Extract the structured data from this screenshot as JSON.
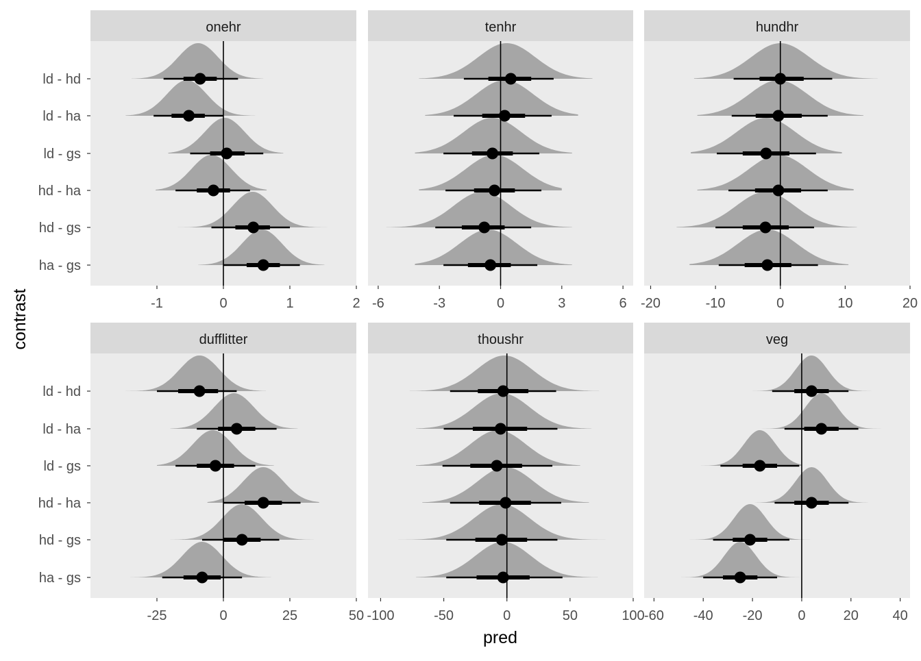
{
  "chart_data": {
    "type": "halfeye",
    "xlabel": "pred",
    "ylabel": "contrast",
    "categories": [
      "ld - hd",
      "ld - ha",
      "ld - gs",
      "hd - ha",
      "hd - gs",
      "ha - gs"
    ],
    "facets": [
      {
        "name": "onehr",
        "xlim": [
          -2.0,
          2.0
        ],
        "ticks": [
          -1,
          0,
          1,
          2
        ],
        "tick_labels": [
          "-1",
          "0",
          "1",
          "2"
        ],
        "points": [
          {
            "contrast": "ld - hd",
            "median": -0.35,
            "ci66": [
              -0.6,
              -0.1
            ],
            "ci95": [
              -0.9,
              0.22
            ],
            "range": [
              -1.38,
              0.6
            ],
            "mode": -0.38,
            "sd": 0.3
          },
          {
            "contrast": "ld - ha",
            "median": -0.52,
            "ci66": [
              -0.78,
              -0.28
            ],
            "ci95": [
              -1.05,
              0.0
            ],
            "range": [
              -1.47,
              0.48
            ],
            "mode": -0.55,
            "sd": 0.3
          },
          {
            "contrast": "ld - gs",
            "median": 0.05,
            "ci66": [
              -0.2,
              0.32
            ],
            "ci95": [
              -0.5,
              0.6
            ],
            "range": [
              -0.83,
              0.9
            ],
            "mode": 0.02,
            "sd": 0.3
          },
          {
            "contrast": "hd - ha",
            "median": -0.15,
            "ci66": [
              -0.4,
              0.1
            ],
            "ci95": [
              -0.72,
              0.4
            ],
            "range": [
              -1.02,
              0.65
            ],
            "mode": -0.18,
            "sd": 0.3
          },
          {
            "contrast": "hd - gs",
            "median": 0.45,
            "ci66": [
              0.18,
              0.7
            ],
            "ci95": [
              -0.18,
              1.0
            ],
            "range": [
              -0.7,
              1.6
            ],
            "mode": 0.44,
            "sd": 0.3
          },
          {
            "contrast": "ha - gs",
            "median": 0.6,
            "ci66": [
              0.35,
              0.85
            ],
            "ci95": [
              0.0,
              1.15
            ],
            "range": [
              -0.38,
              1.52
            ],
            "mode": 0.58,
            "sd": 0.3
          }
        ]
      },
      {
        "name": "tenhr",
        "xlim": [
          -6.5,
          6.5
        ],
        "ticks": [
          -6,
          -3,
          0,
          3,
          6
        ],
        "tick_labels": [
          "-6",
          "-3",
          "0",
          "3",
          "6"
        ],
        "points": [
          {
            "contrast": "ld - hd",
            "median": 0.5,
            "ci66": [
              -0.6,
              1.5
            ],
            "ci95": [
              -1.8,
              2.6
            ],
            "range": [
              -4.0,
              4.5
            ],
            "mode": 0.3,
            "sd": 1.4
          },
          {
            "contrast": "ld - ha",
            "median": 0.2,
            "ci66": [
              -0.9,
              1.2
            ],
            "ci95": [
              -2.3,
              2.5
            ],
            "range": [
              -3.7,
              3.8
            ],
            "mode": 0.2,
            "sd": 1.4
          },
          {
            "contrast": "ld - gs",
            "median": -0.4,
            "ci66": [
              -1.4,
              0.6
            ],
            "ci95": [
              -2.8,
              1.9
            ],
            "range": [
              -4.2,
              3.5
            ],
            "mode": -0.4,
            "sd": 1.4
          },
          {
            "contrast": "hd - ha",
            "median": -0.3,
            "ci66": [
              -1.3,
              0.7
            ],
            "ci95": [
              -2.7,
              2.0
            ],
            "range": [
              -4.0,
              3.0
            ],
            "mode": -0.3,
            "sd": 1.4
          },
          {
            "contrast": "hd - gs",
            "median": -0.8,
            "ci66": [
              -1.9,
              0.2
            ],
            "ci95": [
              -3.2,
              1.5
            ],
            "range": [
              -5.6,
              3.5
            ],
            "mode": -0.9,
            "sd": 1.4
          },
          {
            "contrast": "ha - gs",
            "median": -0.5,
            "ci66": [
              -1.6,
              0.5
            ],
            "ci95": [
              -2.8,
              1.8
            ],
            "range": [
              -4.2,
              3.5
            ],
            "mode": -0.6,
            "sd": 1.4
          }
        ]
      },
      {
        "name": "hundhr",
        "xlim": [
          -21.0,
          20.0
        ],
        "ticks": [
          -20,
          -10,
          0,
          10,
          20
        ],
        "tick_labels": [
          "-20",
          "-10",
          "0",
          "10",
          "20"
        ],
        "points": [
          {
            "contrast": "ld - hd",
            "median": 0.0,
            "ci66": [
              -3.2,
              3.6
            ],
            "ci95": [
              -7.2,
              8.0
            ],
            "range": [
              -13.3,
              15.0
            ],
            "mode": 0.0,
            "sd": 4.5
          },
          {
            "contrast": "ld - ha",
            "median": -0.3,
            "ci66": [
              -3.8,
              3.3
            ],
            "ci95": [
              -7.5,
              7.3
            ],
            "range": [
              -12.8,
              12.8
            ],
            "mode": -0.3,
            "sd": 4.5
          },
          {
            "contrast": "ld - gs",
            "median": -2.2,
            "ci66": [
              -5.8,
              1.4
            ],
            "ci95": [
              -9.8,
              5.5
            ],
            "range": [
              -13.8,
              9.5
            ],
            "mode": -2.2,
            "sd": 4.5
          },
          {
            "contrast": "hd - ha",
            "median": -0.3,
            "ci66": [
              -3.9,
              3.2
            ],
            "ci95": [
              -8.0,
              7.3
            ],
            "range": [
              -12.8,
              11.3
            ],
            "mode": -0.3,
            "sd": 4.5
          },
          {
            "contrast": "hd - gs",
            "median": -2.3,
            "ci66": [
              -5.8,
              1.3
            ],
            "ci95": [
              -10.0,
              5.2
            ],
            "range": [
              -16.0,
              11.8
            ],
            "mode": -2.3,
            "sd": 4.5
          },
          {
            "contrast": "ha - gs",
            "median": -2.0,
            "ci66": [
              -5.5,
              1.7
            ],
            "ci95": [
              -9.5,
              5.8
            ],
            "range": [
              -14.0,
              10.5
            ],
            "mode": -2.0,
            "sd": 4.5
          }
        ]
      },
      {
        "name": "dufflitter",
        "xlim": [
          -50.0,
          50.0
        ],
        "ticks": [
          -25,
          0,
          25,
          50
        ],
        "tick_labels": [
          "-25",
          "0",
          "25",
          "50"
        ],
        "points": [
          {
            "contrast": "ld - hd",
            "median": -9.0,
            "ci66": [
              -17.0,
              -2.0
            ],
            "ci95": [
              -25.0,
              5.0
            ],
            "range": [
              -37.0,
              16.0
            ],
            "mode": -9.0,
            "sd": 7.5
          },
          {
            "contrast": "ld - ha",
            "median": 5.0,
            "ci66": [
              -2.0,
              12.0
            ],
            "ci95": [
              -10.0,
              20.0
            ],
            "range": [
              -20.0,
              28.0
            ],
            "mode": 4.0,
            "sd": 7.5
          },
          {
            "contrast": "ld - gs",
            "median": -3.0,
            "ci66": [
              -10.0,
              4.0
            ],
            "ci95": [
              -18.0,
              12.0
            ],
            "range": [
              -25.0,
              19.0
            ],
            "mode": -4.0,
            "sd": 7.5
          },
          {
            "contrast": "hd - ha",
            "median": 15.0,
            "ci66": [
              8.0,
              22.0
            ],
            "ci95": [
              0.0,
              29.0
            ],
            "range": [
              -6.0,
              36.0
            ],
            "mode": 15.0,
            "sd": 7.5
          },
          {
            "contrast": "hd - gs",
            "median": 7.0,
            "ci66": [
              0.0,
              14.0
            ],
            "ci95": [
              -8.0,
              21.0
            ],
            "range": [
              -20.0,
              34.0
            ],
            "mode": 7.0,
            "sd": 7.5
          },
          {
            "contrast": "ha - gs",
            "median": -8.0,
            "ci66": [
              -15.0,
              -1.0
            ],
            "ci95": [
              -23.0,
              7.0
            ],
            "range": [
              -35.0,
              18.0
            ],
            "mode": -8.0,
            "sd": 7.5
          }
        ]
      },
      {
        "name": "thoushr",
        "xlim": [
          -110.0,
          100.0
        ],
        "ticks": [
          -100,
          -50,
          0,
          50,
          100
        ],
        "tick_labels": [
          "-100",
          "-50",
          "0",
          "50",
          "100"
        ],
        "points": [
          {
            "contrast": "ld - hd",
            "median": -3.0,
            "ci66": [
              -23.0,
              17.0
            ],
            "ci95": [
              -45.0,
              39.0
            ],
            "range": [
              -77.0,
              73.0
            ],
            "mode": -2.0,
            "sd": 22.0
          },
          {
            "contrast": "ld - ha",
            "median": -5.0,
            "ci66": [
              -27.0,
              16.0
            ],
            "ci95": [
              -50.0,
              40.0
            ],
            "range": [
              -72.0,
              67.0
            ],
            "mode": -4.0,
            "sd": 22.0
          },
          {
            "contrast": "ld - gs",
            "median": -8.0,
            "ci66": [
              -29.0,
              12.0
            ],
            "ci95": [
              -51.0,
              36.0
            ],
            "range": [
              -72.0,
              58.0
            ],
            "mode": -7.0,
            "sd": 22.0
          },
          {
            "contrast": "hd - ha",
            "median": -1.0,
            "ci66": [
              -22.0,
              19.0
            ],
            "ci95": [
              -45.0,
              43.0
            ],
            "range": [
              -67.0,
              65.0
            ],
            "mode": -1.0,
            "sd": 22.0
          },
          {
            "contrast": "hd - gs",
            "median": -4.0,
            "ci66": [
              -25.0,
              16.0
            ],
            "ci95": [
              -48.0,
              40.0
            ],
            "range": [
              -86.0,
              78.0
            ],
            "mode": -4.0,
            "sd": 22.0
          },
          {
            "contrast": "ha - gs",
            "median": -3.0,
            "ci66": [
              -24.0,
              18.0
            ],
            "ci95": [
              -48.0,
              44.0
            ],
            "range": [
              -72.0,
              72.0
            ],
            "mode": -3.0,
            "sd": 22.0
          }
        ]
      },
      {
        "name": "veg",
        "xlim": [
          -64.0,
          44.0
        ],
        "ticks": [
          -60,
          -40,
          -20,
          0,
          20,
          40
        ],
        "tick_labels": [
          "-60",
          "-40",
          "-20",
          "0",
          "20",
          "40"
        ],
        "points": [
          {
            "contrast": "ld - hd",
            "median": 4.0,
            "ci66": [
              -3.0,
              11.0
            ],
            "ci95": [
              -12.0,
              19.0
            ],
            "range": [
              -26.0,
              31.0
            ],
            "mode": 4.0,
            "sd": 6.5
          },
          {
            "contrast": "ld - ha",
            "median": 8.0,
            "ci66": [
              1.0,
              15.0
            ],
            "ci95": [
              -7.0,
              23.0
            ],
            "range": [
              -18.0,
              33.0
            ],
            "mode": 8.0,
            "sd": 6.5
          },
          {
            "contrast": "ld - gs",
            "median": -17.0,
            "ci66": [
              -24.0,
              -10.0
            ],
            "ci95": [
              -33.0,
              -1.0
            ],
            "range": [
              -41.0,
              0.0
            ],
            "mode": -17.0,
            "sd": 6.5
          },
          {
            "contrast": "hd - ha",
            "median": 4.0,
            "ci66": [
              -3.0,
              11.0
            ],
            "ci95": [
              -11.0,
              19.0
            ],
            "range": [
              -19.0,
              27.0
            ],
            "mode": 4.0,
            "sd": 6.5
          },
          {
            "contrast": "hd - gs",
            "median": -21.0,
            "ci66": [
              -28.0,
              -14.0
            ],
            "ci95": [
              -36.0,
              -5.0
            ],
            "range": [
              -47.0,
              8.0
            ],
            "mode": -21.0,
            "sd": 6.5
          },
          {
            "contrast": "ha - gs",
            "median": -25.0,
            "ci66": [
              -32.0,
              -18.0
            ],
            "ci95": [
              -40.0,
              -10.0
            ],
            "range": [
              -49.0,
              0.0
            ],
            "mode": -25.0,
            "sd": 6.5
          }
        ]
      }
    ],
    "reference_line": 0,
    "grid": false,
    "colors": {
      "panel_bg": "#ebebeb",
      "strip_bg": "#d9d9d9",
      "density": "#a6a6a6",
      "interval": "#000000",
      "text": "#4d4d4d",
      "title_text": "#1a1a1a"
    }
  }
}
